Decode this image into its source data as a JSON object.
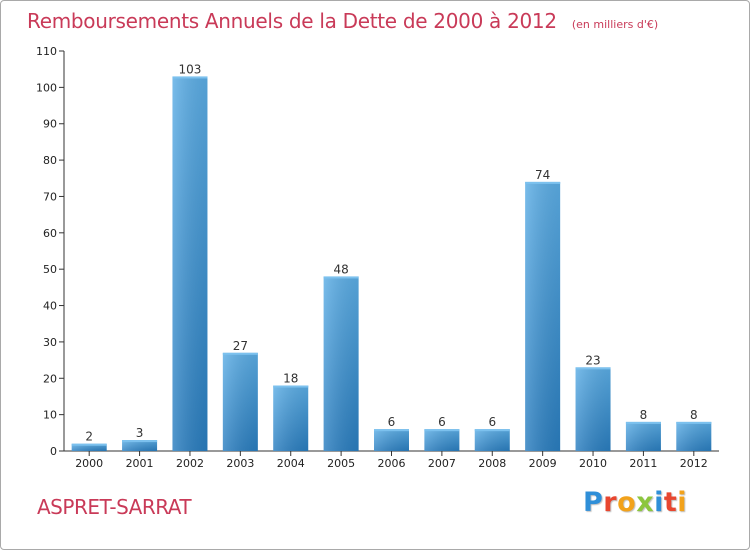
{
  "chart_data": {
    "type": "bar",
    "title": "Remboursements Annuels de la Dette de 2000 à 2012",
    "subtitle": "(en milliers d'€)",
    "xlabel": "",
    "ylabel": "",
    "categories": [
      "2000",
      "2001",
      "2002",
      "2003",
      "2004",
      "2005",
      "2006",
      "2007",
      "2008",
      "2009",
      "2010",
      "2011",
      "2012"
    ],
    "values": [
      2,
      3,
      103,
      27,
      18,
      48,
      6,
      6,
      6,
      74,
      23,
      8,
      8
    ],
    "data_labels": [
      "2",
      "3",
      "103",
      "27",
      "18",
      "48",
      "6",
      "6",
      "6",
      "74",
      "23",
      "8",
      "8"
    ],
    "ylim": [
      0,
      110
    ],
    "yticks": [
      0,
      10,
      20,
      30,
      40,
      50,
      60,
      70,
      80,
      90,
      100,
      110
    ],
    "grid": false,
    "legend": "none"
  },
  "footer": {
    "commune": "ASPRET-SARRAT"
  },
  "logo": {
    "letters": [
      {
        "char": "P",
        "color": "#2f8fd8"
      },
      {
        "char": "r",
        "color": "#e8462f"
      },
      {
        "char": "o",
        "color": "#f2a21b"
      },
      {
        "char": "x",
        "color": "#8cc63e"
      },
      {
        "char": "i",
        "color": "#2f8fd8"
      },
      {
        "char": "t",
        "color": "#e8462f"
      },
      {
        "char": "i",
        "color": "#f2a21b"
      }
    ]
  },
  "colors": {
    "bar_light": "#5caee6",
    "bar_dark": "#2a7ec0",
    "title": "#c93a58",
    "axis": "#333333"
  }
}
